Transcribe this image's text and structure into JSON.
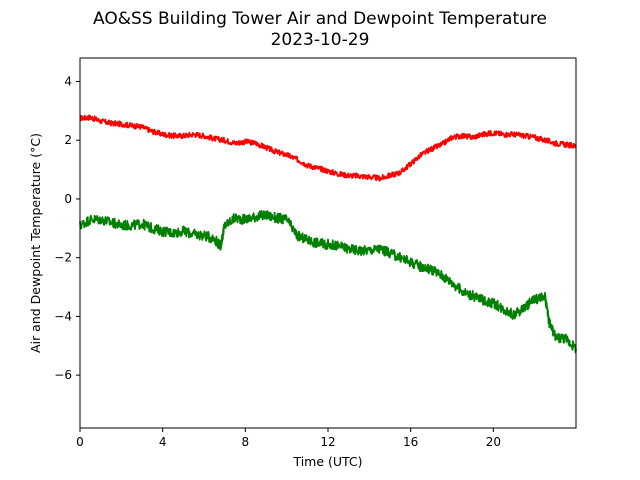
{
  "chart_data": {
    "type": "line",
    "title": "AO&SS Building Tower Air and Dewpoint Temperature",
    "subtitle": "2023-10-29",
    "xlabel": "Time (UTC)",
    "ylabel": "Air and Dewpoint Temperature (°C)",
    "xlim": [
      0,
      24
    ],
    "ylim": [
      -7.8,
      4.8
    ],
    "xticks": [
      0,
      4,
      8,
      12,
      16,
      20
    ],
    "yticks": [
      4,
      2,
      0,
      -2,
      -4,
      -6
    ],
    "grid": false,
    "legend": "none",
    "series": [
      {
        "color": "#ff0000",
        "x": [
          0,
          0.5,
          1,
          1.5,
          2,
          2.5,
          3,
          3.5,
          4,
          4.5,
          5,
          5.5,
          6,
          6.5,
          7,
          7.5,
          8,
          8.5,
          9,
          9.5,
          10,
          10.5,
          11,
          11.5,
          12,
          12.5,
          13,
          13.5,
          14,
          14.5,
          15,
          15.5,
          16,
          16.5,
          17,
          17.5,
          18,
          18.5,
          19,
          19.5,
          20,
          20.5,
          21,
          21.5,
          22,
          22.5,
          23,
          23.5,
          24
        ],
        "y": [
          2.75,
          2.78,
          2.65,
          2.58,
          2.55,
          2.5,
          2.45,
          2.3,
          2.2,
          2.15,
          2.15,
          2.2,
          2.15,
          2.05,
          2.0,
          1.9,
          1.95,
          1.9,
          1.75,
          1.6,
          1.5,
          1.35,
          1.15,
          1.05,
          0.95,
          0.85,
          0.8,
          0.78,
          0.75,
          0.7,
          0.8,
          0.9,
          1.2,
          1.5,
          1.7,
          1.85,
          2.1,
          2.15,
          2.1,
          2.2,
          2.25,
          2.2,
          2.2,
          2.15,
          2.1,
          2.0,
          1.9,
          1.85,
          1.8
        ]
      },
      {
        "color": "#008000",
        "x": [
          0,
          0.5,
          1,
          1.5,
          2,
          2.5,
          3,
          3.5,
          4,
          4.5,
          5,
          5.5,
          6,
          6.5,
          6.8,
          7,
          7.5,
          8,
          8.5,
          9,
          9.5,
          10,
          10.5,
          11,
          11.5,
          12,
          12.5,
          13,
          13.5,
          14,
          14.5,
          15,
          15.5,
          16,
          16.5,
          17,
          17.5,
          18,
          18.5,
          19,
          19.5,
          20,
          20.5,
          21,
          21.5,
          22,
          22.5,
          22.7,
          23,
          23.5,
          24
        ],
        "y": [
          -0.9,
          -0.7,
          -0.7,
          -0.8,
          -0.9,
          -0.9,
          -0.85,
          -1.0,
          -1.1,
          -1.15,
          -1.1,
          -1.2,
          -1.25,
          -1.35,
          -1.6,
          -0.9,
          -0.65,
          -0.7,
          -0.6,
          -0.55,
          -0.65,
          -0.7,
          -1.25,
          -1.4,
          -1.5,
          -1.55,
          -1.6,
          -1.7,
          -1.75,
          -1.75,
          -1.7,
          -1.85,
          -2.0,
          -2.15,
          -2.3,
          -2.4,
          -2.6,
          -2.85,
          -3.15,
          -3.3,
          -3.45,
          -3.55,
          -3.75,
          -3.95,
          -3.7,
          -3.4,
          -3.35,
          -4.2,
          -4.7,
          -4.75,
          -5.1
        ]
      }
    ]
  }
}
